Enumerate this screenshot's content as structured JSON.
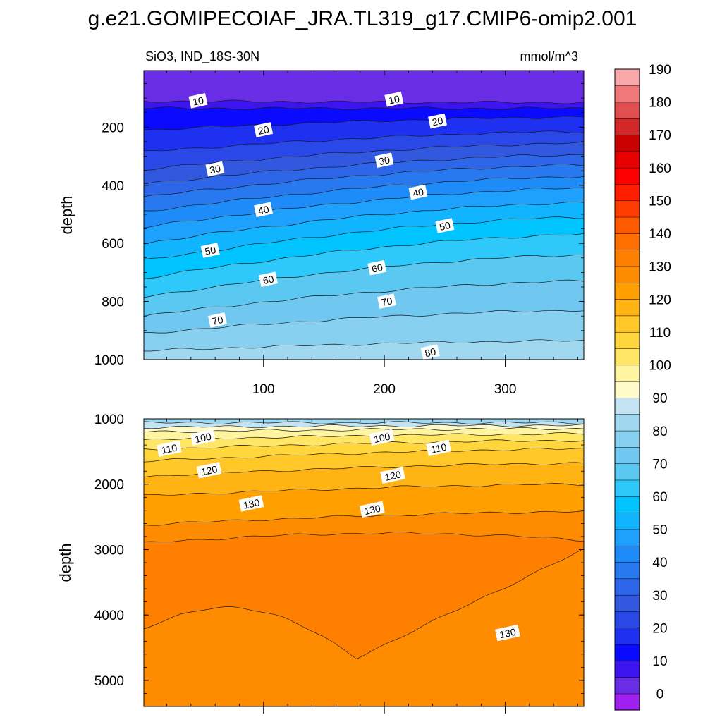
{
  "title": "g.e21.GOMIPECOIAF_JRA.TL319_g17.CMIP6-omip2.001",
  "chart_data": {
    "type": "heatmap",
    "variable_label": "SiO3, IND_18S-30N",
    "units": "mmol/m^3",
    "xlim": [
      1,
      365
    ],
    "x_ticks": [
      100,
      200,
      300
    ],
    "colorbar": {
      "levels": [
        0,
        5,
        10,
        15,
        20,
        25,
        30,
        35,
        40,
        45,
        50,
        55,
        60,
        65,
        70,
        75,
        80,
        85,
        90,
        95,
        100,
        105,
        110,
        115,
        120,
        125,
        130,
        135,
        140,
        145,
        150,
        155,
        160,
        165,
        170,
        175,
        180,
        185,
        190,
        195
      ],
      "tick_labels": [
        "0",
        "10",
        "20",
        "30",
        "40",
        "50",
        "60",
        "70",
        "80",
        "90",
        "100",
        "110",
        "120",
        "130",
        "140",
        "150",
        "160",
        "170",
        "180",
        "190"
      ],
      "colors": [
        "#a020f0",
        "#6a2de6",
        "#3c14f0",
        "#0a0aff",
        "#1e30f0",
        "#2a48e8",
        "#3358e0",
        "#2d66e8",
        "#2878f0",
        "#1e8cf8",
        "#1ea0ff",
        "#10b4ff",
        "#00c4ff",
        "#2ec8fa",
        "#5ac8f0",
        "#70c8f0",
        "#88d0f0",
        "#a0d8f0",
        "#c4e4f4",
        "#fffac8",
        "#fff5a0",
        "#ffe664",
        "#ffd73c",
        "#ffc828",
        "#ffb414",
        "#ffa000",
        "#ff8c00",
        "#ff8000",
        "#ff6e00",
        "#ff5a00",
        "#ff3c00",
        "#ff1e00",
        "#ff0000",
        "#e60000",
        "#c80000",
        "#d22828",
        "#e05050",
        "#f07878",
        "#f8a8a8"
      ]
    },
    "panels": [
      {
        "name": "upper",
        "ylabel": "depth",
        "ylim": [
          1000,
          5
        ],
        "y_ticks": [
          200,
          400,
          600,
          800,
          1000
        ],
        "contours": [
          {
            "level": 10,
            "left": 110,
            "right": 115
          },
          {
            "level": 15,
            "left": 135,
            "right": 135
          },
          {
            "level": 20,
            "left": 210,
            "right": 165
          },
          {
            "level": 25,
            "left": 285,
            "right": 215
          },
          {
            "level": 30,
            "left": 345,
            "right": 255
          },
          {
            "level": 35,
            "left": 395,
            "right": 295
          },
          {
            "level": 40,
            "left": 440,
            "right": 330
          },
          {
            "level": 45,
            "left": 490,
            "right": 370
          },
          {
            "level": 50,
            "left": 545,
            "right": 410
          },
          {
            "level": 55,
            "left": 600,
            "right": 460
          },
          {
            "level": 60,
            "left": 660,
            "right": 510
          },
          {
            "level": 65,
            "left": 720,
            "right": 570
          },
          {
            "level": 70,
            "left": 785,
            "right": 640
          },
          {
            "level": 75,
            "left": 850,
            "right": 730
          },
          {
            "level": 80,
            "left": 910,
            "right": 830
          },
          {
            "level": 85,
            "left": 970,
            "right": 935
          }
        ],
        "contour_labels": [
          {
            "text": "10",
            "x": 46,
            "y": 110
          },
          {
            "text": "10",
            "x": 208,
            "y": 105
          },
          {
            "text": "20",
            "x": 100,
            "y": 210
          },
          {
            "text": "20",
            "x": 244,
            "y": 180
          },
          {
            "text": "30",
            "x": 60,
            "y": 345
          },
          {
            "text": "30",
            "x": 200,
            "y": 315
          },
          {
            "text": "40",
            "x": 100,
            "y": 485
          },
          {
            "text": "40",
            "x": 228,
            "y": 425
          },
          {
            "text": "50",
            "x": 56,
            "y": 625
          },
          {
            "text": "50",
            "x": 250,
            "y": 540
          },
          {
            "text": "60",
            "x": 104,
            "y": 725
          },
          {
            "text": "60",
            "x": 194,
            "y": 685
          },
          {
            "text": "70",
            "x": 62,
            "y": 865
          },
          {
            "text": "70",
            "x": 202,
            "y": 800
          },
          {
            "text": "80",
            "x": 238,
            "y": 975
          }
        ]
      },
      {
        "name": "lower",
        "ylabel": "depth",
        "ylim": [
          5400,
          1000
        ],
        "y_ticks": [
          1000,
          2000,
          3000,
          4000,
          5000
        ],
        "contours": [
          {
            "level": 90,
            "left": 1060,
            "right": 1060
          },
          {
            "level": 95,
            "left": 1130,
            "right": 1100
          },
          {
            "level": 100,
            "left": 1200,
            "right": 1150
          },
          {
            "level": 105,
            "left": 1320,
            "right": 1230
          },
          {
            "level": 110,
            "left": 1470,
            "right": 1330
          },
          {
            "level": 115,
            "left": 1650,
            "right": 1460
          },
          {
            "level": 120,
            "left": 1880,
            "right": 1680
          },
          {
            "level": 125,
            "left": 2180,
            "right": 2000
          },
          {
            "level": 130,
            "left": 2620,
            "right": 2420
          }
        ],
        "contour_labels": [
          {
            "text": "100",
            "x": 50,
            "y": 1290
          },
          {
            "text": "100",
            "x": 198,
            "y": 1290
          },
          {
            "text": "110",
            "x": 22,
            "y": 1460
          },
          {
            "text": "110",
            "x": 245,
            "y": 1450
          },
          {
            "text": "120",
            "x": 55,
            "y": 1790
          },
          {
            "text": "120",
            "x": 207,
            "y": 1870
          },
          {
            "text": "130",
            "x": 90,
            "y": 2300
          },
          {
            "text": "130",
            "x": 190,
            "y": 2390
          },
          {
            "text": "130",
            "x": 302,
            "y": 4280
          }
        ]
      }
    ]
  }
}
